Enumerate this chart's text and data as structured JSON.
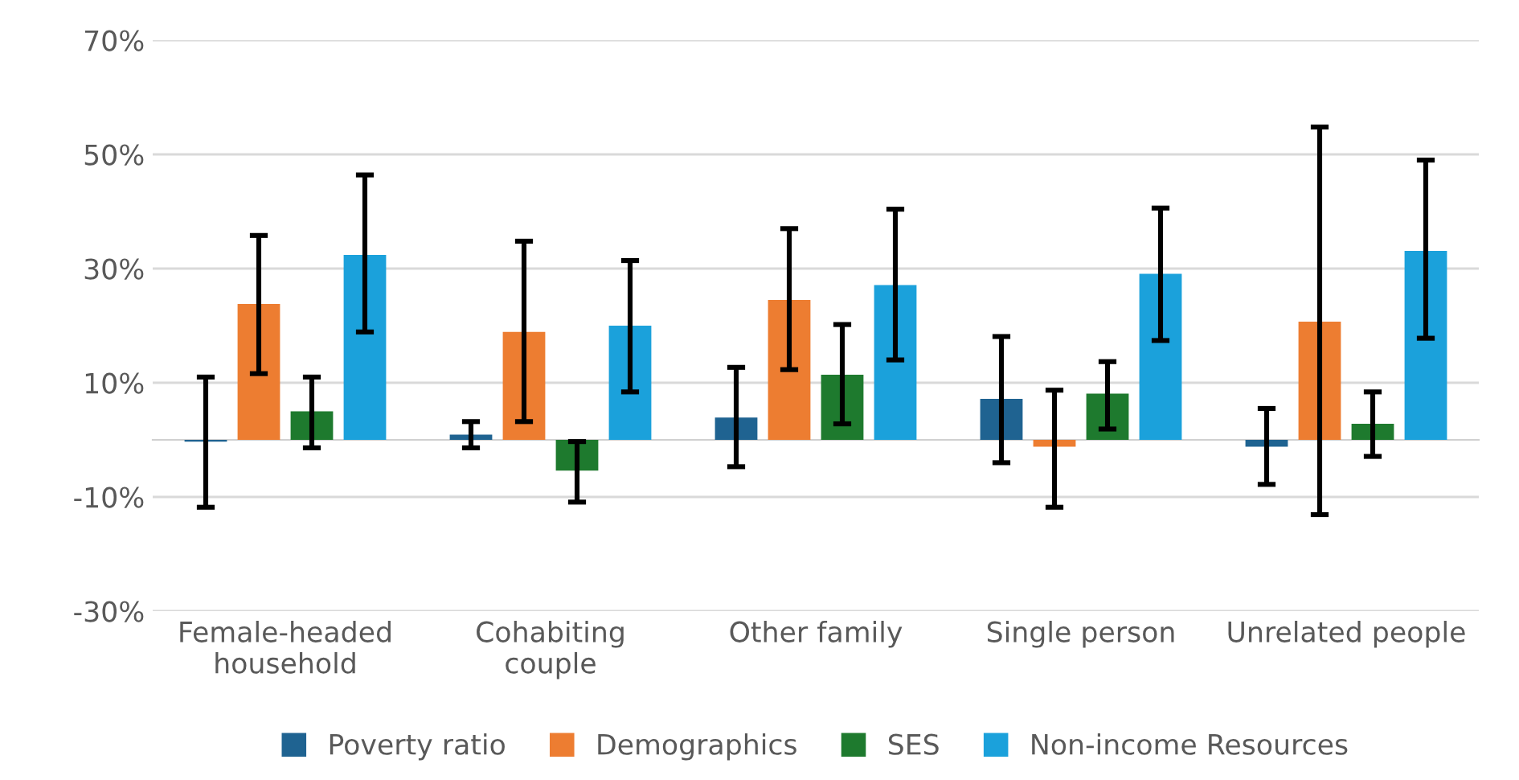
{
  "chart_data": {
    "type": "bar",
    "categories": [
      "Female-headed household",
      "Cohabiting couple",
      "Other family",
      "Single person",
      "Unrelated people"
    ],
    "series": [
      {
        "name": "Poverty ratio",
        "color": "#1f6391",
        "values": [
          -0.3,
          0.9,
          3.9,
          7.2,
          -1.2
        ],
        "errors": [
          [
            -11.8,
            11.0
          ],
          [
            -1.4,
            3.2
          ],
          [
            -4.7,
            12.7
          ],
          [
            -4.0,
            18.1
          ],
          [
            -7.8,
            5.5
          ]
        ]
      },
      {
        "name": "Demographics",
        "color": "#ed7d31",
        "values": [
          23.8,
          18.9,
          24.5,
          -1.2,
          20.7
        ],
        "errors": [
          [
            11.6,
            35.8
          ],
          [
            3.2,
            34.8
          ],
          [
            12.3,
            37.0
          ],
          [
            -11.8,
            8.7
          ],
          [
            -13.1,
            54.8
          ]
        ]
      },
      {
        "name": "SES",
        "color": "#1e7a2e",
        "values": [
          5.0,
          -5.4,
          11.4,
          8.1,
          2.8
        ],
        "errors": [
          [
            -1.4,
            11.0
          ],
          [
            -10.9,
            -0.3
          ],
          [
            2.8,
            20.2
          ],
          [
            1.9,
            13.7
          ],
          [
            -2.9,
            8.4
          ]
        ]
      },
      {
        "name": "Non-income Resources",
        "color": "#1ba1db",
        "values": [
          32.4,
          20.0,
          27.1,
          29.1,
          33.1
        ],
        "errors": [
          [
            18.9,
            46.4
          ],
          [
            8.4,
            31.4
          ],
          [
            14.0,
            40.4
          ],
          [
            17.4,
            40.6
          ],
          [
            17.8,
            49.0
          ]
        ]
      }
    ],
    "ylim": [
      -30,
      70
    ],
    "yticks": [
      {
        "value": -30,
        "label": "-30%"
      },
      {
        "value": -10,
        "label": "-10%"
      },
      {
        "value": 10,
        "label": "10%"
      },
      {
        "value": 30,
        "label": "30%"
      },
      {
        "value": 50,
        "label": "50%"
      },
      {
        "value": 70,
        "label": "70%"
      }
    ],
    "grid": "y",
    "legend": "bottom"
  }
}
